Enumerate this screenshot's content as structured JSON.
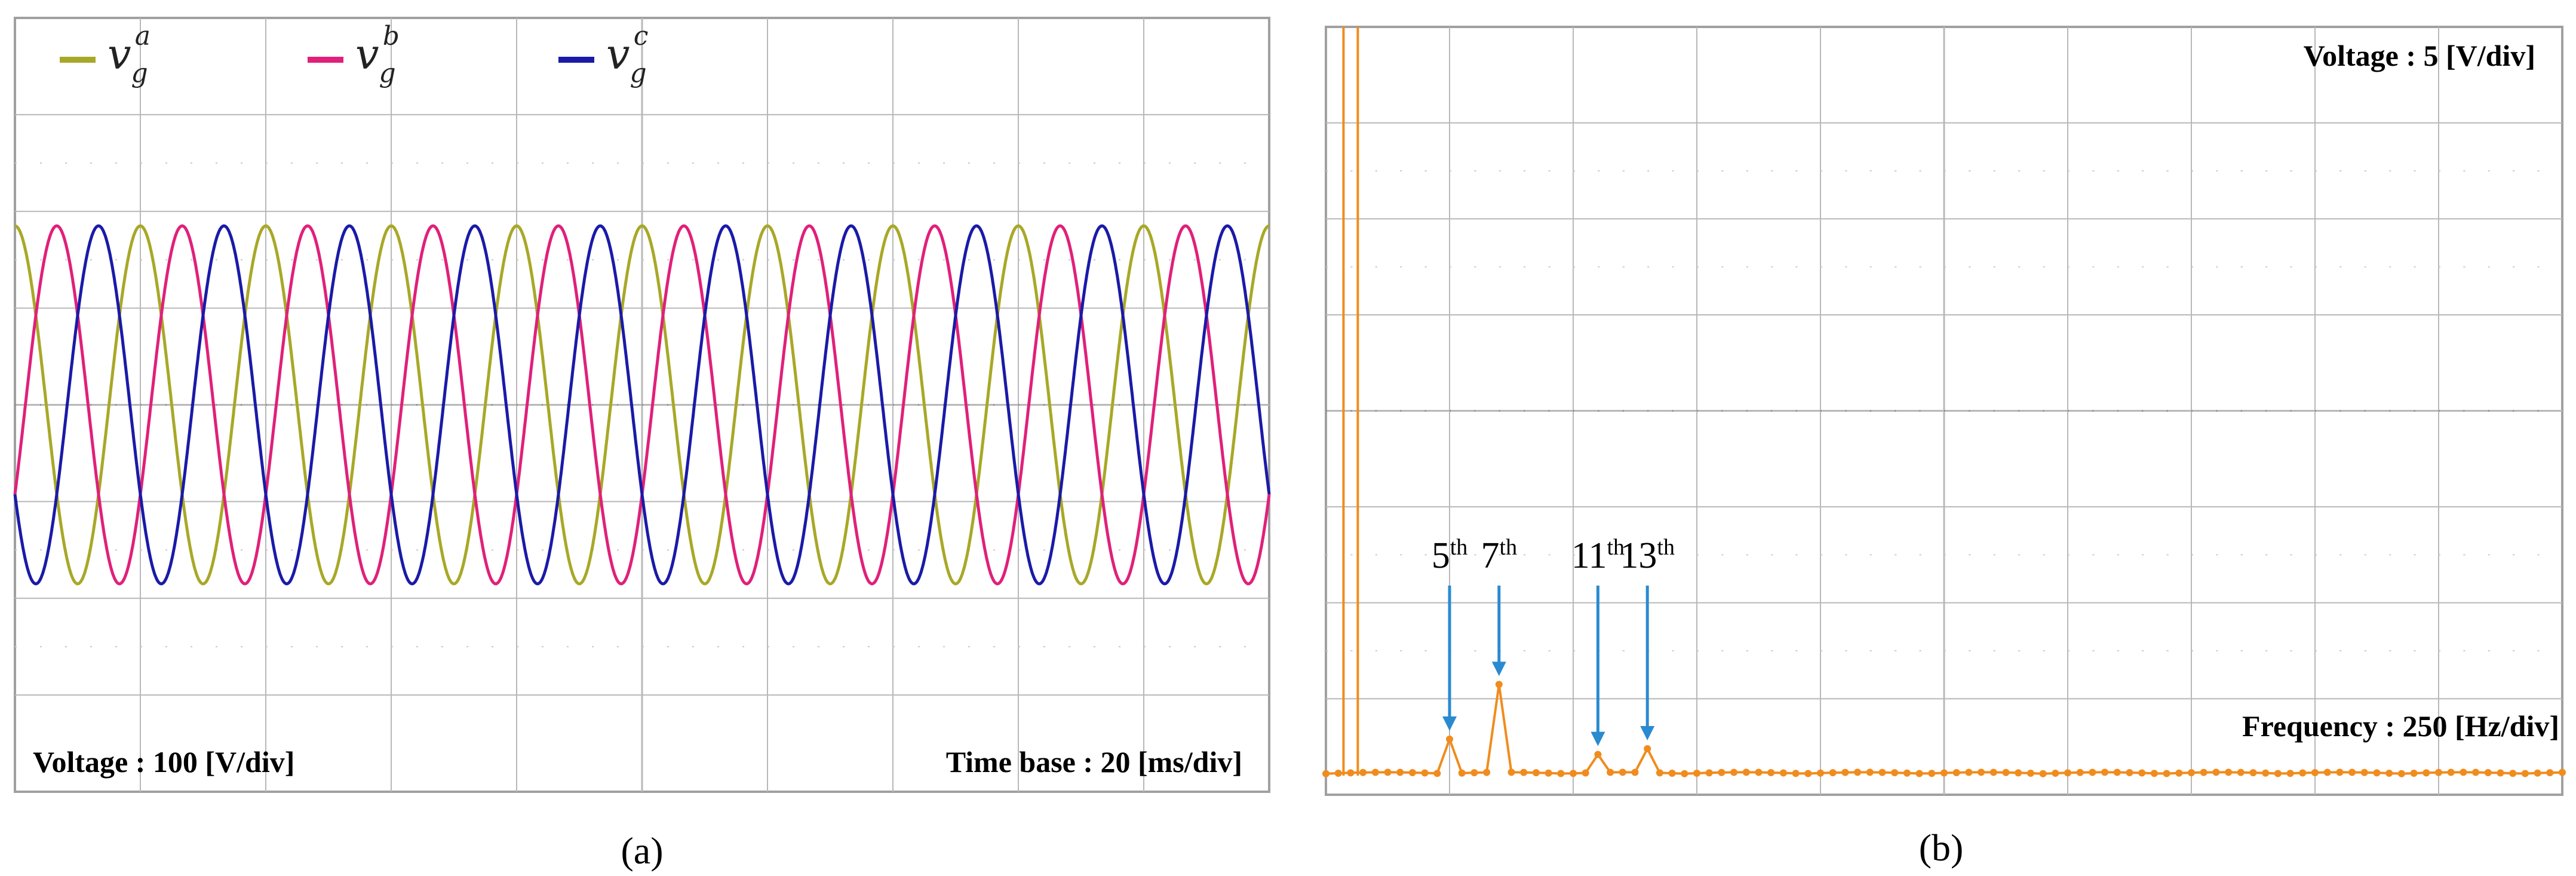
{
  "colors": {
    "phase_a": "#a8a828",
    "phase_b": "#e0207a",
    "phase_c": "#1a1aa8",
    "spectrum": "#f08c1e",
    "arrow": "#2a8ad0",
    "grid": "#b8b8b8",
    "frame": "#a0a0a0"
  },
  "chart_data": [
    {
      "panel": "(a)",
      "type": "line",
      "title": "",
      "series": [
        {
          "name_base": "v",
          "name_sub": "g",
          "name_sup": "a",
          "color": "#a8a828",
          "phase_deg": 0
        },
        {
          "name_base": "v",
          "name_sub": "g",
          "name_sup": "b",
          "color": "#e0207a",
          "phase_deg": -120
        },
        {
          "name_base": "v",
          "name_sub": "g",
          "name_sup": "c",
          "color": "#1a1aa8",
          "phase_deg": 120
        }
      ],
      "frequency_hz": 50,
      "amplitude_div": 1.85,
      "x_divisions": 10,
      "y_divisions": 8,
      "time_per_div_ms": 20,
      "volt_per_div": 100,
      "voltage_label": "Voltage : 100 [V/div]",
      "time_label": "Time base : 20 [ms/div]",
      "grid": true,
      "legend_position": "top-left"
    },
    {
      "panel": "(b)",
      "type": "line",
      "title": "",
      "x_divisions": 10,
      "y_divisions": 8,
      "hz_per_div": 250,
      "volt_per_div": 5,
      "voltage_label": "Voltage : 5 [V/div]",
      "frequency_label": "Frequency : 250 [Hz/div]",
      "fundamental_hz": 50,
      "harmonics": [
        {
          "order_text": "5",
          "sup": "th",
          "frequency_hz": 250,
          "amplitude_div": 0.38
        },
        {
          "order_text": "7",
          "sup": "th",
          "frequency_hz": 350,
          "amplitude_div": 0.95
        },
        {
          "order_text": "11",
          "sup": "th",
          "frequency_hz": 550,
          "amplitude_div": 0.22
        },
        {
          "order_text": "13",
          "sup": "th",
          "frequency_hz": 650,
          "amplitude_div": 0.28
        }
      ],
      "grid": true
    }
  ]
}
